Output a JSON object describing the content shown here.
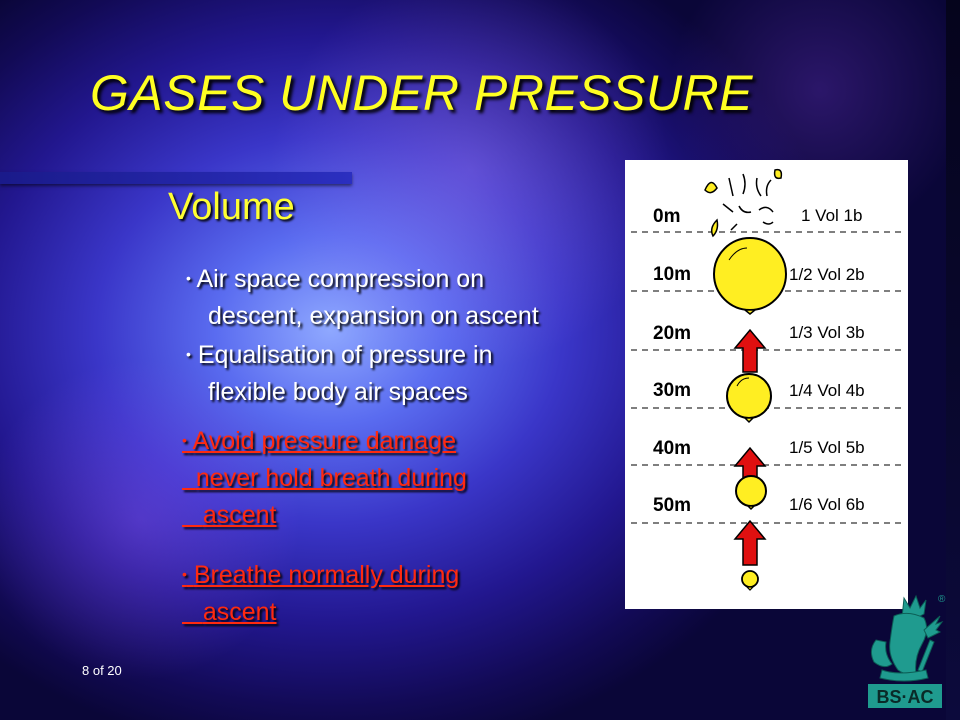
{
  "slide": {
    "title": "GASES UNDER PRESSURE",
    "subtitle": "Volume",
    "page_counter": "8 of 20"
  },
  "bullets": [
    {
      "lines": [
        "Air space compression on",
        "descent, expansion on ascent"
      ],
      "style": "white"
    },
    {
      "lines": [
        "Equalisation of pressure in",
        "flexible body air spaces"
      ],
      "style": "white"
    },
    {
      "lines": [
        "Avoid pressure damage",
        "never hold breath during",
        "ascent"
      ],
      "style": "red"
    },
    {
      "lines": [
        "Breathe normally during",
        "ascent"
      ],
      "style": "red"
    }
  ],
  "diagram": {
    "rows": [
      {
        "depth": "0m",
        "ratio": "1 Vol 1b",
        "balloon": "burst"
      },
      {
        "depth": "10m",
        "ratio": "1/2 Vol 2b",
        "balloon": "large"
      },
      {
        "depth": "20m",
        "ratio": "1/3 Vol 3b",
        "balloon": "arrow"
      },
      {
        "depth": "30m",
        "ratio": "1/4 Vol 4b",
        "balloon": "medium"
      },
      {
        "depth": "40m",
        "ratio": "1/5 Vol 5b",
        "balloon": "arrow"
      },
      {
        "depth": "50m",
        "ratio": "1/6 Vol 6b",
        "balloon": "small"
      }
    ],
    "colors": {
      "balloon": "#ffee22",
      "arrow": "#e01010",
      "line": "#555555"
    }
  },
  "logo": {
    "text": "BS·AC",
    "mark": "®",
    "icon": "neptune-trident-icon",
    "color": "#1f9b8f"
  }
}
